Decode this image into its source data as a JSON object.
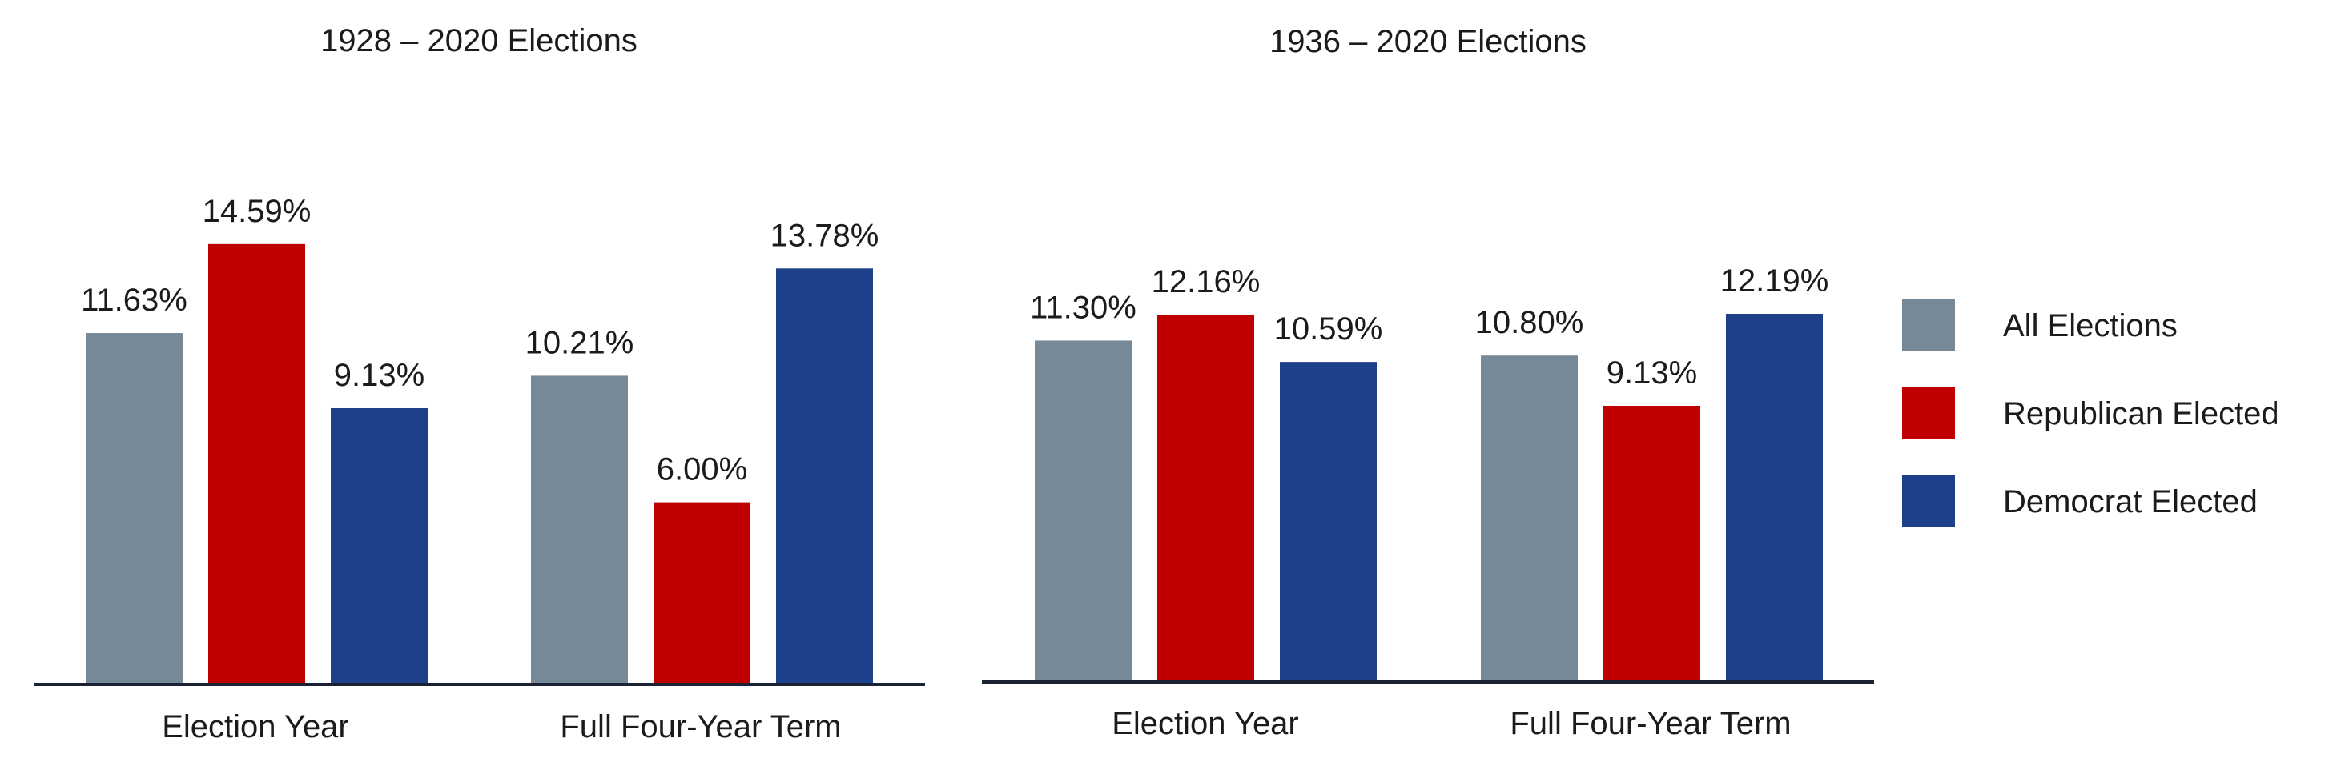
{
  "legend": [
    {
      "name": "All Elections",
      "color": "#778896"
    },
    {
      "name": "Republican Elected",
      "color": "#c00000"
    },
    {
      "name": "Democrat Elected",
      "color": "#1c418a"
    }
  ],
  "chart_data": [
    {
      "type": "bar",
      "title": "1928 – 2020 Elections",
      "xlabel": "",
      "ylabel": "",
      "categories": [
        "Election Year",
        "Full Four-Year Term"
      ],
      "series": [
        {
          "name": "All Elections",
          "values": [
            11.63,
            10.21
          ],
          "labels": [
            "11.63%",
            "10.21%"
          ]
        },
        {
          "name": "Republican Elected",
          "values": [
            14.59,
            6.0
          ],
          "labels": [
            "14.59%",
            "6.00%"
          ]
        },
        {
          "name": "Democrat Elected",
          "values": [
            9.13,
            13.78
          ],
          "labels": [
            "9.13%",
            "13.78%"
          ]
        }
      ],
      "ylim": [
        0,
        16
      ],
      "grid": false,
      "legend_position": "right"
    },
    {
      "type": "bar",
      "title": "1936 – 2020 Elections",
      "xlabel": "",
      "ylabel": "",
      "categories": [
        "Election Year",
        "Full Four-Year Term"
      ],
      "series": [
        {
          "name": "All Elections",
          "values": [
            11.3,
            10.8
          ],
          "labels": [
            "11.30%",
            "10.80%"
          ]
        },
        {
          "name": "Republican Elected",
          "values": [
            12.16,
            9.13
          ],
          "labels": [
            "12.16%",
            "9.13%"
          ]
        },
        {
          "name": "Democrat Elected",
          "values": [
            10.59,
            12.19
          ],
          "labels": [
            "10.59%",
            "12.19%"
          ]
        }
      ],
      "ylim": [
        0,
        16
      ],
      "grid": false,
      "legend_position": "right"
    }
  ]
}
